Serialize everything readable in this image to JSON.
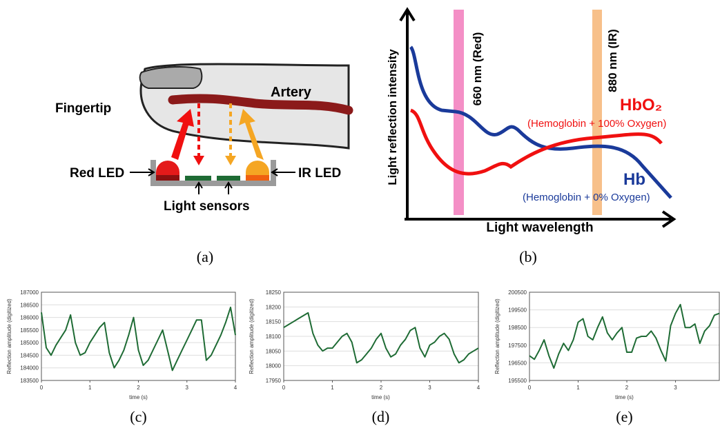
{
  "diagram_a": {
    "labels": {
      "fingertip": "Fingertip",
      "artery": "Artery",
      "red_led": "Red LED",
      "ir_led": "IR LED",
      "sensors": "Light sensors"
    },
    "caption": "(a)"
  },
  "diagram_b": {
    "y_label": "Light reflection intensity",
    "x_label": "Light wavelength",
    "band_red": "660 nm (Red)",
    "band_ir": "880 nm (IR)",
    "hbo2": "HbO₂",
    "hbo2_note": "(Hemoglobin + 100% Oxygen)",
    "hb": "Hb",
    "hb_note": "(Hemoglobin + 0% Oxygen)",
    "caption": "(b)"
  },
  "chart_data": [
    {
      "type": "line",
      "caption": "(c)",
      "xlabel": "time (s)",
      "ylabel": "Reflection amplitude (digitized)",
      "x": [
        0,
        0.1,
        0.2,
        0.3,
        0.4,
        0.5,
        0.6,
        0.7,
        0.8,
        0.9,
        1,
        1.1,
        1.2,
        1.3,
        1.4,
        1.5,
        1.6,
        1.7,
        1.8,
        1.9,
        2,
        2.1,
        2.2,
        2.3,
        2.4,
        2.5,
        2.6,
        2.7,
        2.8,
        2.9,
        3,
        3.1,
        3.2,
        3.3,
        3.4,
        3.5,
        3.6,
        3.7,
        3.8,
        3.9,
        4
      ],
      "series": [
        {
          "color": "#1e6b34",
          "values": [
            186200,
            184800,
            184500,
            184900,
            185200,
            185500,
            186100,
            185000,
            184500,
            184600,
            185000,
            185300,
            185600,
            185800,
            184600,
            184000,
            184300,
            184700,
            185300,
            186000,
            184700,
            184100,
            184300,
            184700,
            185100,
            185500,
            184700,
            183900,
            184300,
            184700,
            185100,
            185500,
            185900,
            185900,
            184300,
            184500,
            184900,
            185300,
            185800,
            186400,
            185300
          ]
        }
      ],
      "xlim": [
        0,
        4
      ],
      "xticks": [
        0,
        1,
        2,
        3,
        4
      ],
      "ylim": [
        183500,
        187000
      ],
      "yticks": [
        183500,
        184000,
        184500,
        185000,
        185500,
        186000,
        186500,
        187000
      ],
      "grid": true
    },
    {
      "type": "line",
      "caption": "(d)",
      "xlabel": "time (s)",
      "ylabel": "Reflection amplitude (digitized)",
      "x": [
        0,
        0.1,
        0.2,
        0.3,
        0.4,
        0.5,
        0.6,
        0.7,
        0.8,
        0.9,
        1,
        1.1,
        1.2,
        1.3,
        1.4,
        1.5,
        1.6,
        1.7,
        1.8,
        1.9,
        2,
        2.1,
        2.2,
        2.3,
        2.4,
        2.5,
        2.6,
        2.7,
        2.8,
        2.9,
        3,
        3.1,
        3.2,
        3.3,
        3.4,
        3.5,
        3.6,
        3.7,
        3.8,
        3.9,
        4
      ],
      "series": [
        {
          "color": "#1e6b34",
          "values": [
            18130,
            18140,
            18150,
            18160,
            18170,
            18180,
            18110,
            18070,
            18050,
            18060,
            18060,
            18080,
            18100,
            18110,
            18080,
            18010,
            18020,
            18040,
            18060,
            18090,
            18110,
            18060,
            18030,
            18040,
            18070,
            18090,
            18120,
            18130,
            18060,
            18030,
            18070,
            18080,
            18100,
            18110,
            18090,
            18040,
            18010,
            18020,
            18040,
            18050,
            18060
          ]
        }
      ],
      "xlim": [
        0,
        4
      ],
      "xticks": [
        0,
        1,
        2,
        3,
        4
      ],
      "ylim": [
        17950,
        18250
      ],
      "yticks": [
        17950,
        18000,
        18050,
        18100,
        18150,
        18200,
        18250
      ],
      "grid": true
    },
    {
      "type": "line",
      "caption": "(e)",
      "xlabel": "time (s)",
      "ylabel": "Reflection amplitude (digitized)",
      "x": [
        0,
        0.1,
        0.2,
        0.3,
        0.4,
        0.5,
        0.6,
        0.7,
        0.8,
        0.9,
        1,
        1.1,
        1.2,
        1.3,
        1.4,
        1.5,
        1.6,
        1.7,
        1.8,
        1.9,
        2,
        2.1,
        2.2,
        2.3,
        2.4,
        2.5,
        2.6,
        2.7,
        2.8,
        2.9,
        3,
        3.1,
        3.2,
        3.3,
        3.4,
        3.5,
        3.6,
        3.7,
        3.8,
        3.9
      ],
      "series": [
        {
          "color": "#1e6b34",
          "values": [
            196900,
            196700,
            197200,
            197800,
            196900,
            196200,
            197000,
            197600,
            197200,
            197800,
            198800,
            199000,
            198000,
            197800,
            198500,
            199100,
            198200,
            197800,
            198200,
            198500,
            197100,
            197100,
            197900,
            198000,
            198000,
            198300,
            197900,
            197200,
            196600,
            198600,
            199300,
            199800,
            198500,
            198500,
            198700,
            197600,
            198300,
            198600,
            199200,
            199300
          ]
        }
      ],
      "xlim": [
        0,
        3.9
      ],
      "xticks": [
        0,
        1,
        2,
        3
      ],
      "ylim": [
        195500,
        200500
      ],
      "yticks": [
        195500,
        196500,
        197500,
        198500,
        199500,
        200500
      ],
      "grid": true
    }
  ]
}
